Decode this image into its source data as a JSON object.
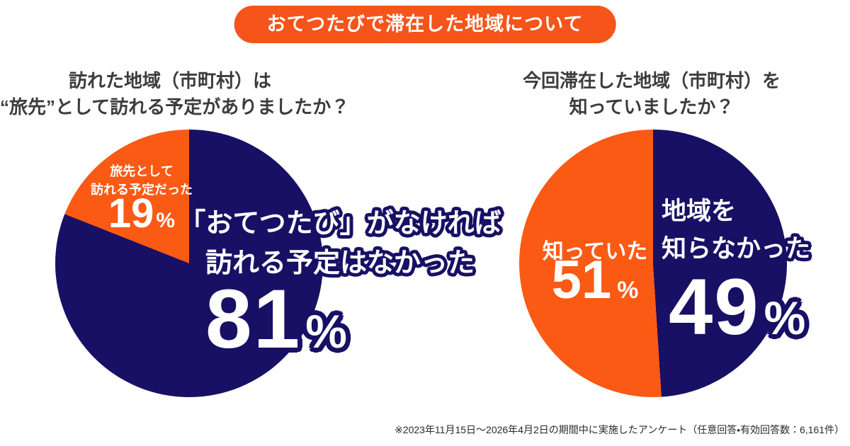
{
  "badge": {
    "label": "おてつたびで滞在した地域について"
  },
  "colors": {
    "badge_orange": "#f5541a",
    "pie_orange": "#fa5a14",
    "pie_navy": "#181064",
    "title_text": "#3c3c3c",
    "label_text": "#ffffff",
    "footnote_text": "#2b2b2b",
    "background": "#ffffff"
  },
  "percent_sign": "%",
  "pies": [
    {
      "title_lines": [
        "訪れた地域（市町村）は",
        "“旅先”として訪れる予定がありましたか？"
      ],
      "minor": {
        "label_lines": [
          "旅先として",
          "訪れる予定だった"
        ]
      },
      "major": {
        "label_lines": [
          "「おてつたび」がなければ",
          "訪れる予定はなかった"
        ]
      }
    },
    {
      "title_lines": [
        "今回滞在した地域（市町村）を",
        "知っていましたか？"
      ],
      "major": {
        "label_lines": [
          "地域を",
          "知らなかった"
        ]
      }
    }
  ],
  "chart_data": [
    {
      "type": "pie",
      "title": "訪れた地域（市町村）は“旅先”として訪れる予定がありましたか？",
      "start_angle_deg": 0,
      "direction": "clockwise",
      "legend": "none",
      "slices": [
        {
          "label": "「おてつたび」がなければ訪れる予定はなかった",
          "value": 81,
          "color": "#181064"
        },
        {
          "label": "旅先として訪れる予定だった",
          "value": 19,
          "color": "#fa5a14"
        }
      ]
    },
    {
      "type": "pie",
      "title": "今回滞在した地域（市町村）を知っていましたか？",
      "start_angle_deg": 0,
      "direction": "clockwise",
      "legend": "none",
      "slices": [
        {
          "label": "地域を知らなかった",
          "value": 49,
          "color": "#181064"
        },
        {
          "label": "知っていた",
          "value": 51,
          "color": "#fa5a14"
        }
      ]
    }
  ],
  "footnote": "※2023年11月15日〜2026年4月2日の期間中に実施したアンケート（任意回答・有効回答数：6,161件）"
}
